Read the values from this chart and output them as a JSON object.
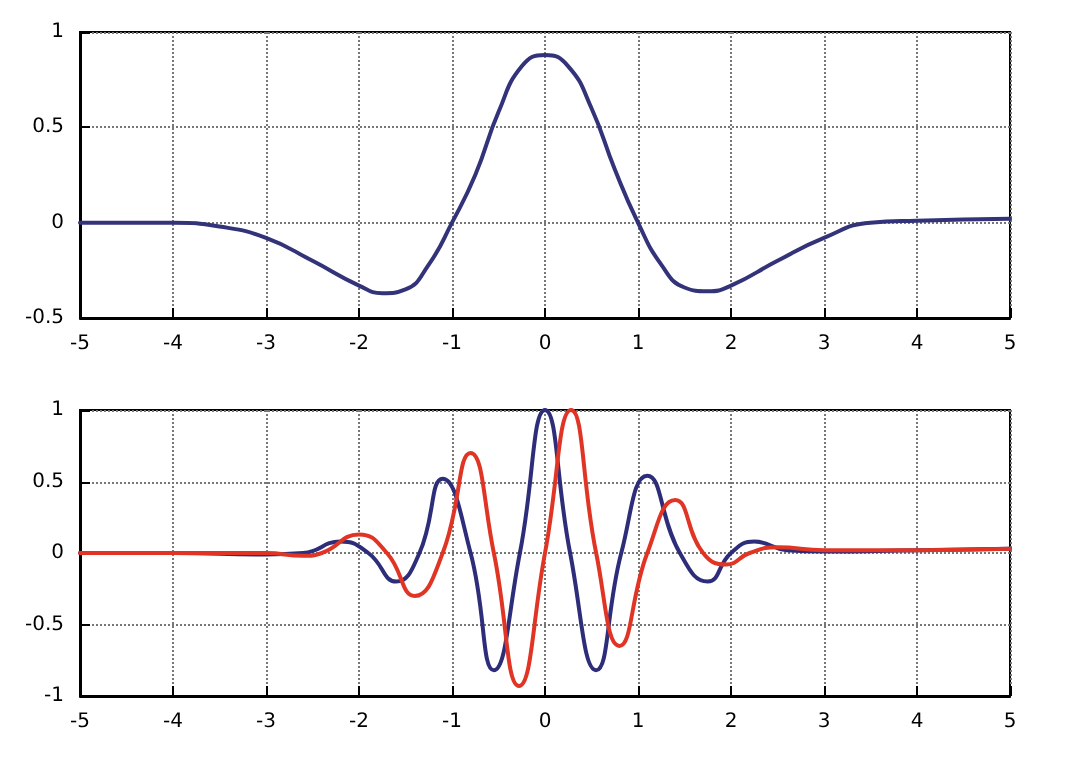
{
  "chart_data": [
    {
      "type": "line",
      "xlim": [
        -5,
        5
      ],
      "xticks": [
        -5,
        -4,
        -3,
        -2,
        -1,
        0,
        1,
        2,
        3,
        4,
        5
      ],
      "ylim": [
        -0.5,
        1
      ],
      "yticks": [
        -0.5,
        0,
        0.5,
        1
      ],
      "grid": true,
      "marker": "none",
      "line_style": "solid",
      "x": [
        -5,
        -4,
        -3.5,
        -3,
        -2.5,
        -2,
        -1.75,
        -1.5,
        -1.25,
        -1,
        -0.75,
        -0.5,
        -0.25,
        0,
        0.25,
        0.5,
        0.75,
        1,
        1.25,
        1.5,
        1.75,
        2,
        2.5,
        3,
        3.5,
        4,
        5
      ],
      "series": [
        {
          "color": "#33337a",
          "values": [
            0,
            0,
            -0.02,
            -0.08,
            -0.2,
            -0.33,
            -0.37,
            -0.35,
            -0.22,
            0,
            0.25,
            0.58,
            0.82,
            0.88,
            0.82,
            0.6,
            0.28,
            0,
            -0.22,
            -0.34,
            -0.36,
            -0.33,
            -0.2,
            -0.08,
            0,
            0.01,
            0.02
          ]
        }
      ]
    },
    {
      "type": "line",
      "xlim": [
        -5,
        5
      ],
      "xticks": [
        -5,
        -4,
        -3,
        -2,
        -1,
        0,
        1,
        2,
        3,
        4,
        5
      ],
      "ylim": [
        -1,
        1
      ],
      "yticks": [
        -1,
        -0.5,
        0,
        0.5,
        1
      ],
      "grid": true,
      "marker": "none",
      "line_style": "solid",
      "series": [
        {
          "color": "#2e2d7a",
          "x": [
            -5,
            -4,
            -3,
            -2.6,
            -2.2,
            -1.9,
            -1.6,
            -1.35,
            -1.1,
            -0.8,
            -0.55,
            -0.27,
            0,
            0.27,
            0.55,
            0.82,
            1.1,
            1.45,
            1.75,
            2,
            2.25,
            2.6,
            3,
            4,
            5
          ],
          "values": [
            0,
            0,
            -0.01,
            0,
            0.08,
            0,
            -0.2,
            0,
            0.52,
            0,
            -0.82,
            0,
            1,
            0,
            -0.82,
            0,
            0.54,
            0,
            -0.2,
            0,
            0.08,
            0.02,
            0.01,
            0.02,
            0.03
          ]
        },
        {
          "color": "#e03525",
          "x": [
            -5,
            -4,
            -3,
            -2.6,
            -2.4,
            -2,
            -1.7,
            -1.4,
            -1.1,
            -0.8,
            -0.55,
            -0.28,
            0,
            0.28,
            0.55,
            0.8,
            1.1,
            1.4,
            1.7,
            1.95,
            2.2,
            2.5,
            3,
            4,
            5
          ],
          "values": [
            0,
            0,
            0,
            -0.02,
            0,
            0.13,
            0,
            -0.3,
            0,
            0.7,
            0,
            -0.93,
            0,
            1,
            0,
            -0.65,
            0,
            0.37,
            0,
            -0.08,
            0,
            0.04,
            0.02,
            0.02,
            0.03
          ]
        }
      ]
    }
  ]
}
